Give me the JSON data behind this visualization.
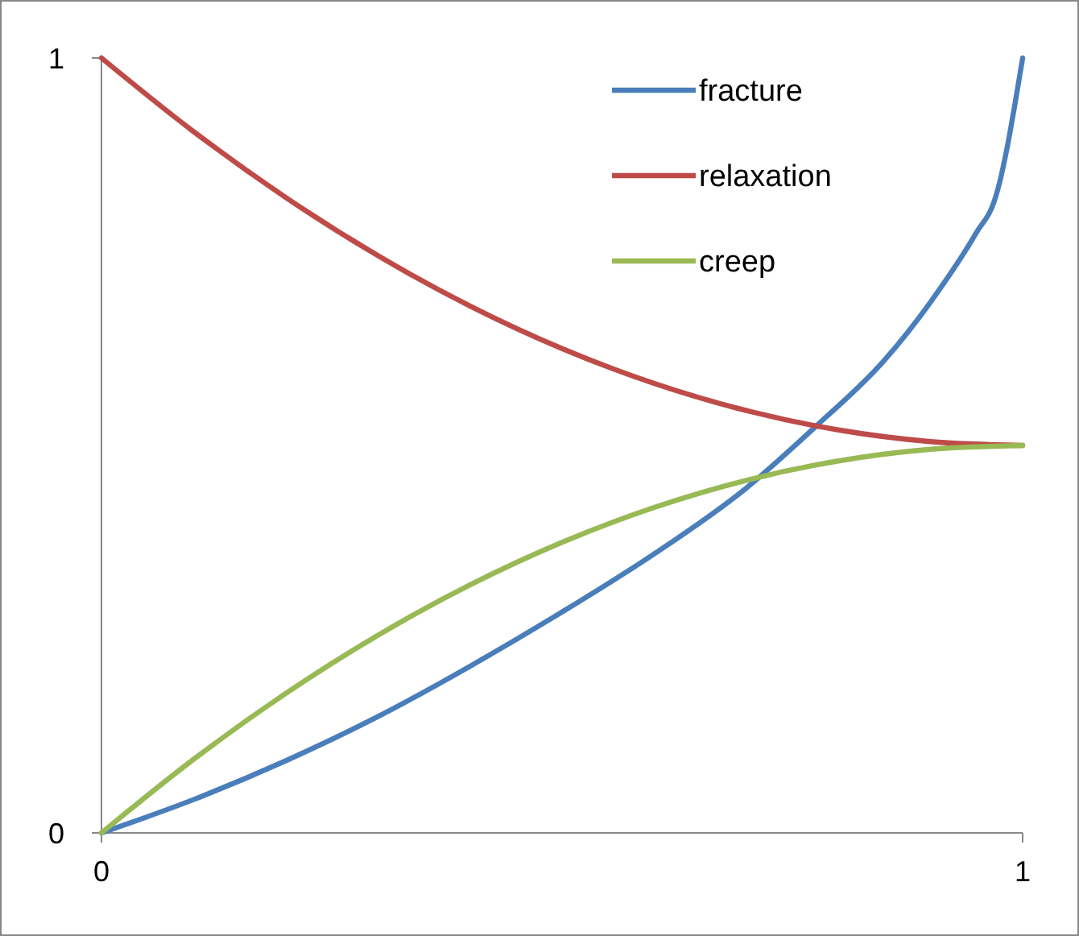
{
  "chart_data": {
    "type": "line",
    "xlim": [
      0,
      1
    ],
    "ylim": [
      0,
      1
    ],
    "xticks": [
      0,
      1
    ],
    "yticks": [
      0,
      1
    ],
    "grid": false,
    "legend": "top right",
    "marker": "none",
    "line_style": "solid",
    "series": [
      {
        "name": "fracture",
        "color": "#4a7ebb",
        "x": [
          0,
          0.1,
          0.2,
          0.3,
          0.4,
          0.5,
          0.6,
          0.7,
          0.775,
          0.85,
          0.9,
          0.95,
          0.97,
          1
        ],
        "values": [
          0,
          0.043,
          0.093,
          0.15,
          0.215,
          0.285,
          0.36,
          0.445,
          0.524,
          0.61,
          0.685,
          0.775,
          0.818,
          1
        ]
      },
      {
        "name": "relaxation",
        "color": "#be4b48",
        "x": [
          0,
          0.1,
          0.2,
          0.3,
          0.4,
          0.5,
          0.6,
          0.7,
          0.8,
          0.9,
          1
        ],
        "values": [
          1,
          0.905,
          0.82,
          0.745,
          0.68,
          0.625,
          0.58,
          0.545,
          0.52,
          0.505,
          0.5
        ]
      },
      {
        "name": "creep",
        "color": "#98b954",
        "x": [
          0,
          0.1,
          0.2,
          0.3,
          0.4,
          0.5,
          0.6,
          0.7,
          0.8,
          0.9,
          1
        ],
        "values": [
          0,
          0.095,
          0.18,
          0.255,
          0.32,
          0.375,
          0.42,
          0.455,
          0.48,
          0.495,
          0.5
        ]
      }
    ]
  }
}
